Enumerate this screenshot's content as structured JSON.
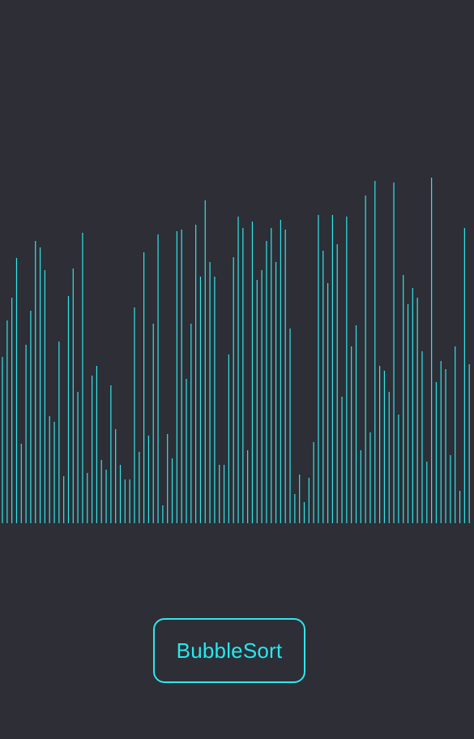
{
  "app": {
    "button_label": "BubbleSort"
  },
  "colors": {
    "background": "#2d2e36",
    "bar": "#2fe6ea",
    "button_border": "#2fe6ea",
    "button_text": "#27e8ef"
  },
  "visualizer": {
    "max_value": 430,
    "values": [
      205,
      250,
      278,
      327,
      98,
      220,
      262,
      348,
      340,
      312,
      132,
      125,
      224,
      58,
      280,
      314,
      162,
      358,
      62,
      182,
      194,
      78,
      66,
      170,
      116,
      72,
      54,
      54,
      266,
      88,
      334,
      108,
      246,
      356,
      22,
      110,
      80,
      360,
      362,
      178,
      246,
      368,
      304,
      398,
      322,
      304,
      72,
      72,
      208,
      328,
      378,
      364,
      90,
      372,
      300,
      312,
      348,
      364,
      322,
      374,
      362,
      240,
      36,
      60,
      26,
      56,
      100,
      380,
      336,
      296,
      380,
      344,
      156,
      378,
      218,
      244,
      90,
      404,
      112,
      422,
      194,
      188,
      162,
      420,
      134,
      306,
      270,
      290,
      278,
      212,
      76,
      426,
      174,
      200,
      190,
      84,
      218,
      40,
      364,
      196
    ]
  }
}
